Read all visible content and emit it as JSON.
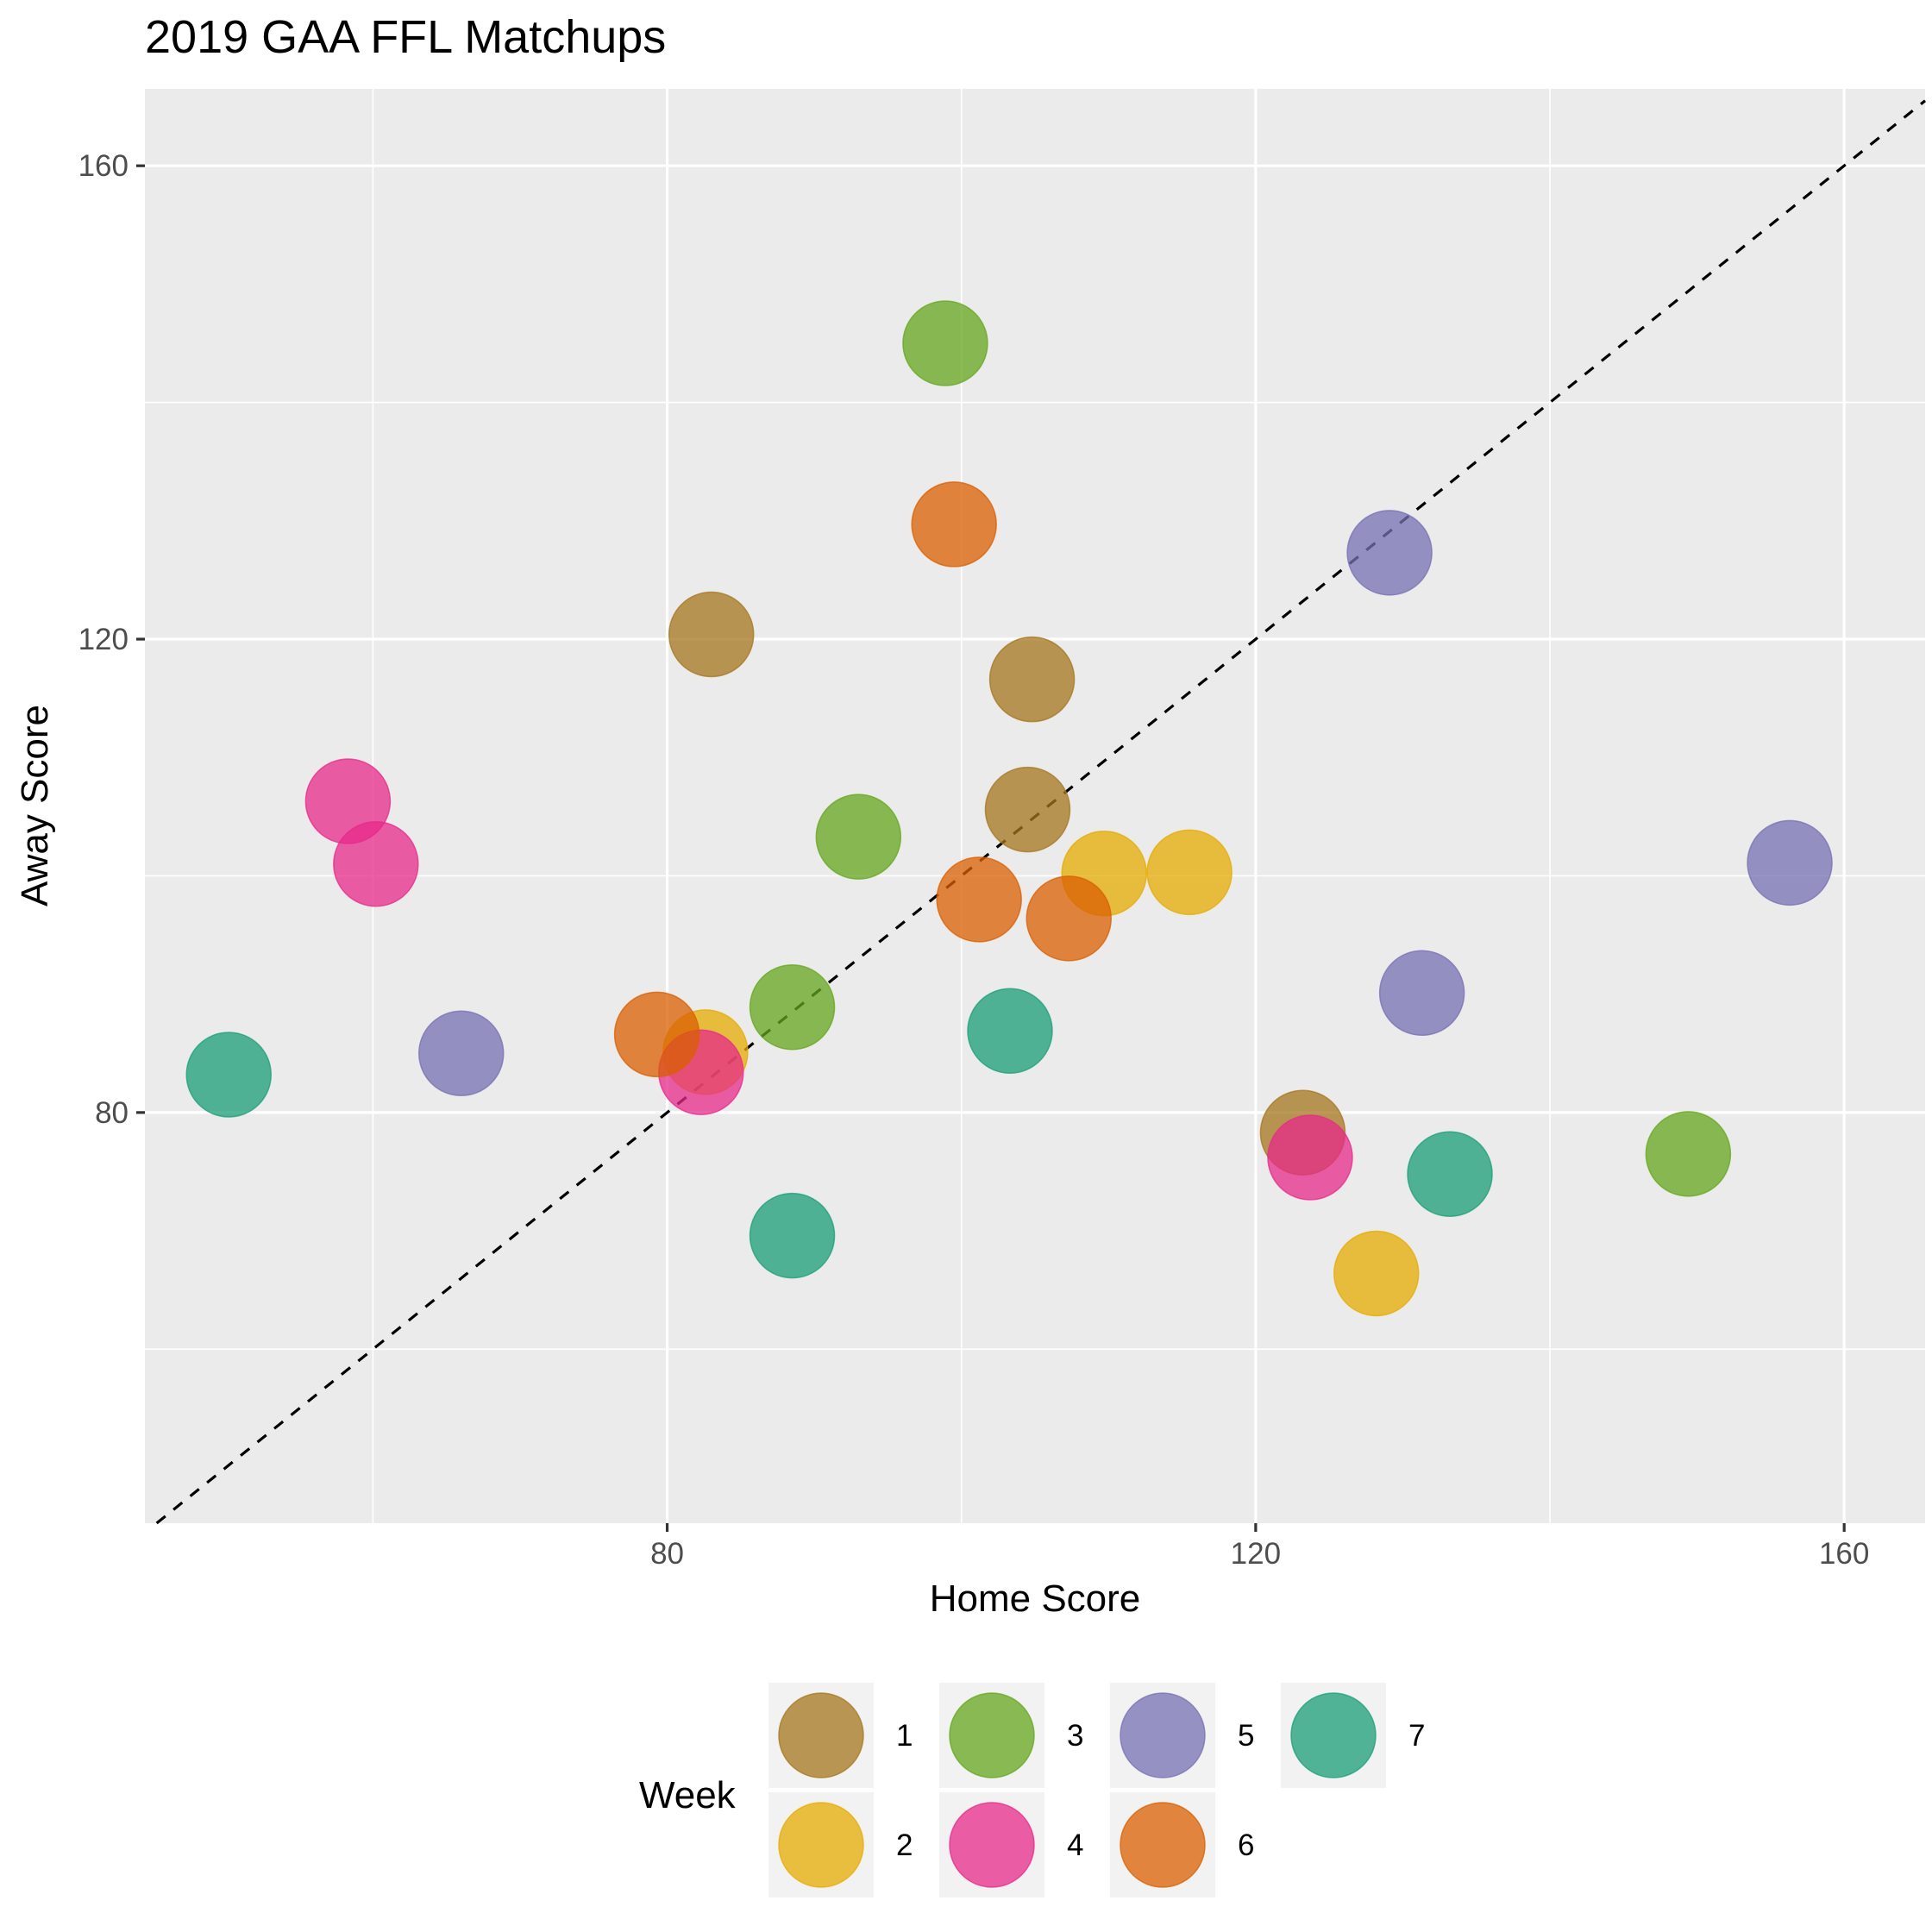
{
  "chart_data": {
    "type": "scatter",
    "title": "2019 GAA FFL Matchups",
    "xlabel": "Home Score",
    "ylabel": "Away Score",
    "xlim": [
      44.5,
      165.5
    ],
    "ylim": [
      45.3,
      166.5
    ],
    "x_ticks": [
      80,
      120,
      160
    ],
    "y_ticks": [
      80,
      120,
      160
    ],
    "x_minor": [
      60,
      100,
      140
    ],
    "y_minor": [
      60,
      100,
      140
    ],
    "grid": true,
    "reference_line": {
      "type": "identity",
      "style": "dashed",
      "slope": 1,
      "intercept": 0
    },
    "legend": {
      "title": "Week",
      "position": "bottom"
    },
    "series": [
      {
        "name": "1",
        "color": "#A6761D",
        "points": [
          [
            83,
            120.4
          ],
          [
            104.8,
            116.6
          ],
          [
            104.5,
            105.6
          ],
          [
            123.2,
            78.3
          ]
        ]
      },
      {
        "name": "2",
        "color": "#E6AB02",
        "points": [
          [
            82.6,
            85.1
          ],
          [
            109.7,
            100.2
          ],
          [
            115.5,
            100.3
          ],
          [
            128.2,
            66.4
          ]
        ]
      },
      {
        "name": "3",
        "color": "#66A61E",
        "points": [
          [
            98.9,
            145.0
          ],
          [
            93.0,
            103.3
          ],
          [
            88.5,
            88.9
          ],
          [
            149.4,
            76.5
          ]
        ]
      },
      {
        "name": "4",
        "color": "#E7298A",
        "points": [
          [
            58.3,
            106.3
          ],
          [
            60.2,
            101.0
          ],
          [
            82.3,
            83.4
          ],
          [
            123.7,
            76.2
          ]
        ]
      },
      {
        "name": "5",
        "color": "#7570B3",
        "points": [
          [
            129.1,
            127.3
          ],
          [
            156.3,
            101.1
          ],
          [
            131.3,
            90.1
          ],
          [
            66.0,
            85.0
          ]
        ]
      },
      {
        "name": "6",
        "color": "#D95F02",
        "points": [
          [
            99.5,
            129.7
          ],
          [
            101.2,
            98.0
          ],
          [
            107.3,
            96.4
          ],
          [
            79.3,
            86.6
          ]
        ]
      },
      {
        "name": "7",
        "color": "#1B9E77",
        "points": [
          [
            50.2,
            83.2
          ],
          [
            103.3,
            86.9
          ],
          [
            133.2,
            74.8
          ],
          [
            88.5,
            69.6
          ]
        ]
      }
    ]
  }
}
